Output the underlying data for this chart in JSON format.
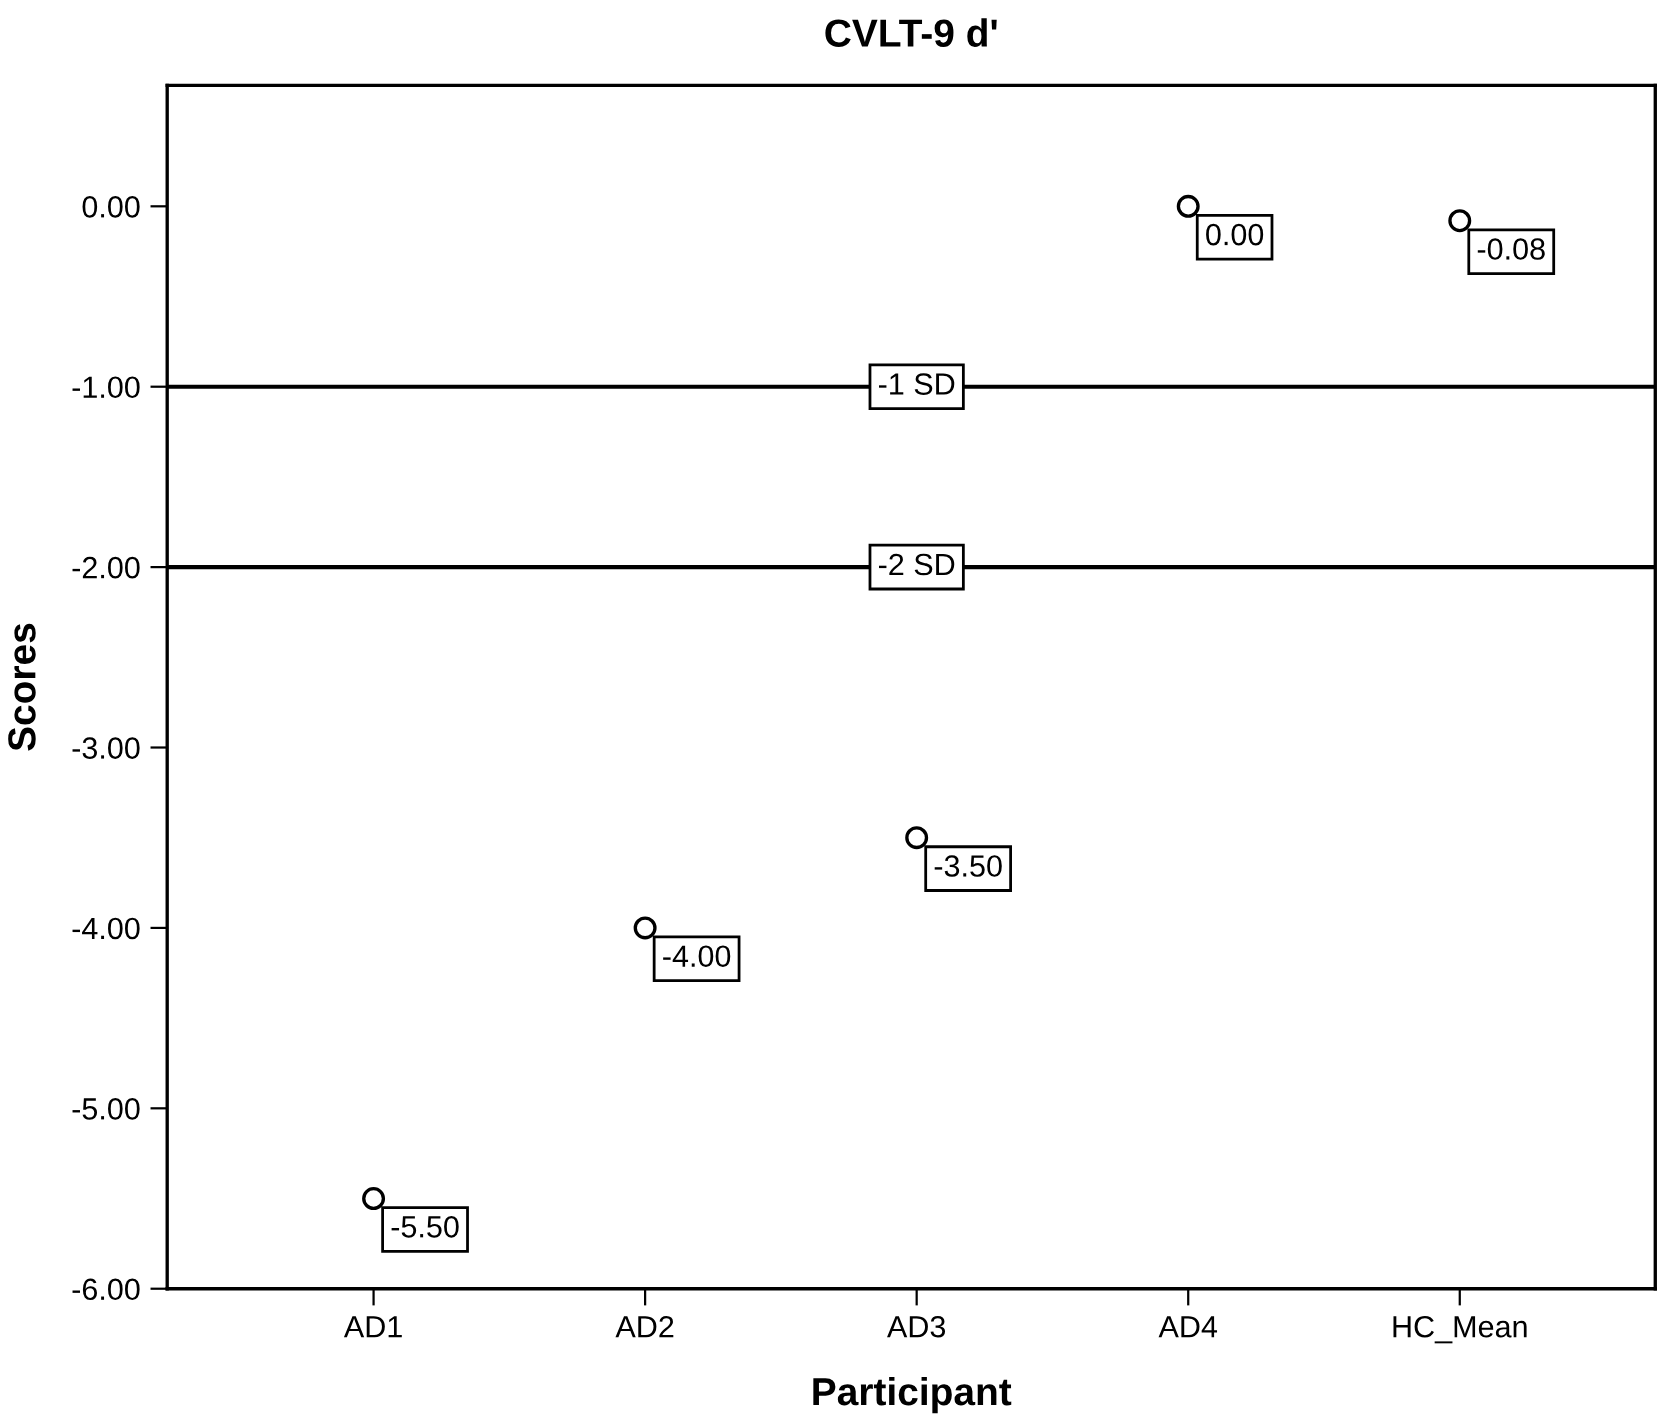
{
  "chart_data": {
    "type": "scatter",
    "title": "CVLT-9 d'",
    "xlabel": "Participant",
    "ylabel": "Scores",
    "categories": [
      "AD1",
      "AD2",
      "AD3",
      "AD4",
      "HC_Mean"
    ],
    "values": [
      -5.5,
      -4.0,
      -3.5,
      0.0,
      -0.08
    ],
    "value_labels": [
      "-5.50",
      "-4.00",
      "-3.50",
      "0.00",
      "-0.08"
    ],
    "color": "#000000",
    "marker": "circle",
    "ylim": [
      -6,
      0.67
    ],
    "yticks": [
      {
        "value": 0,
        "label": "0.00"
      },
      {
        "value": -1,
        "label": "-1.00"
      },
      {
        "value": -2,
        "label": "-2.00"
      },
      {
        "value": -3,
        "label": "-3.00"
      },
      {
        "value": -4,
        "label": "-4.00"
      },
      {
        "value": -5,
        "label": "-5.00"
      },
      {
        "value": -6,
        "label": "-6.00"
      }
    ],
    "ref_lines": [
      {
        "axis": "y",
        "value": -1,
        "label": "-1 SD",
        "color": "#000000"
      },
      {
        "axis": "y",
        "value": -2,
        "label": "-2 SD",
        "color": "#000000"
      }
    ],
    "grid": false
  }
}
